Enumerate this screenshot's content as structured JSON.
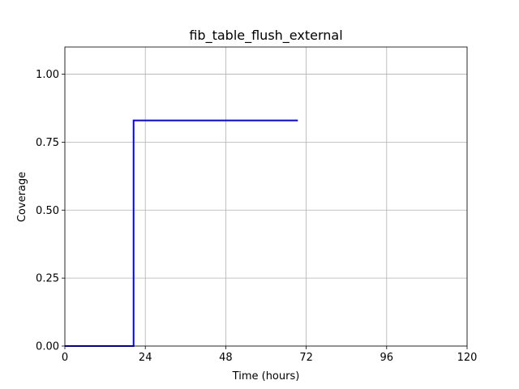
{
  "chart_data": {
    "type": "line",
    "title": "fib_table_flush_external",
    "xlabel": "Time (hours)",
    "ylabel": "Coverage",
    "xlim": [
      0,
      120
    ],
    "ylim": [
      0,
      1.1
    ],
    "xticks": [
      0,
      24,
      48,
      72,
      96,
      120
    ],
    "xtick_labels": [
      "0",
      "24",
      "48",
      "72",
      "96",
      "120"
    ],
    "yticks": [
      0,
      0.25,
      0.5,
      0.75,
      1.0
    ],
    "ytick_labels": [
      "0.00",
      "0.25",
      "0.50",
      "0.75",
      "1.00"
    ],
    "grid": true,
    "series": [
      {
        "color": "#0000ff",
        "x": [
          0,
          20.5,
          20.5,
          69.5
        ],
        "y": [
          0,
          0,
          0.83,
          0.83
        ]
      }
    ]
  }
}
